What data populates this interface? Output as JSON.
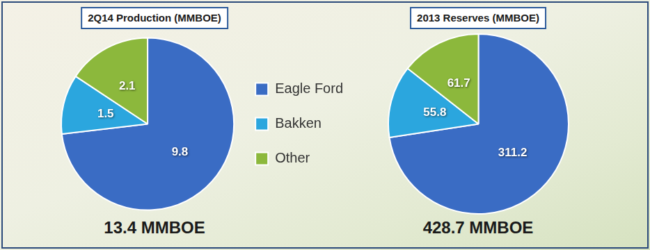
{
  "chart_data": [
    {
      "type": "pie",
      "title": "2Q14 Production (MMBOE)",
      "subtitle": "13.4 MMBOE",
      "categories": [
        "Eagle Ford",
        "Bakken",
        "Other"
      ],
      "values": [
        9.8,
        1.5,
        2.1
      ],
      "colors": [
        "#3a6cc4",
        "#2ba6de",
        "#8cb83c"
      ],
      "data_labels": true,
      "legend": "right"
    },
    {
      "type": "pie",
      "title": "2013 Reserves (MMBOE)",
      "subtitle": "428.7 MMBOE",
      "categories": [
        "Eagle Ford",
        "Bakken",
        "Other"
      ],
      "values": [
        311.2,
        55.8,
        61.7
      ],
      "colors": [
        "#3a6cc4",
        "#2ba6de",
        "#8cb83c"
      ],
      "data_labels": true
    }
  ]
}
